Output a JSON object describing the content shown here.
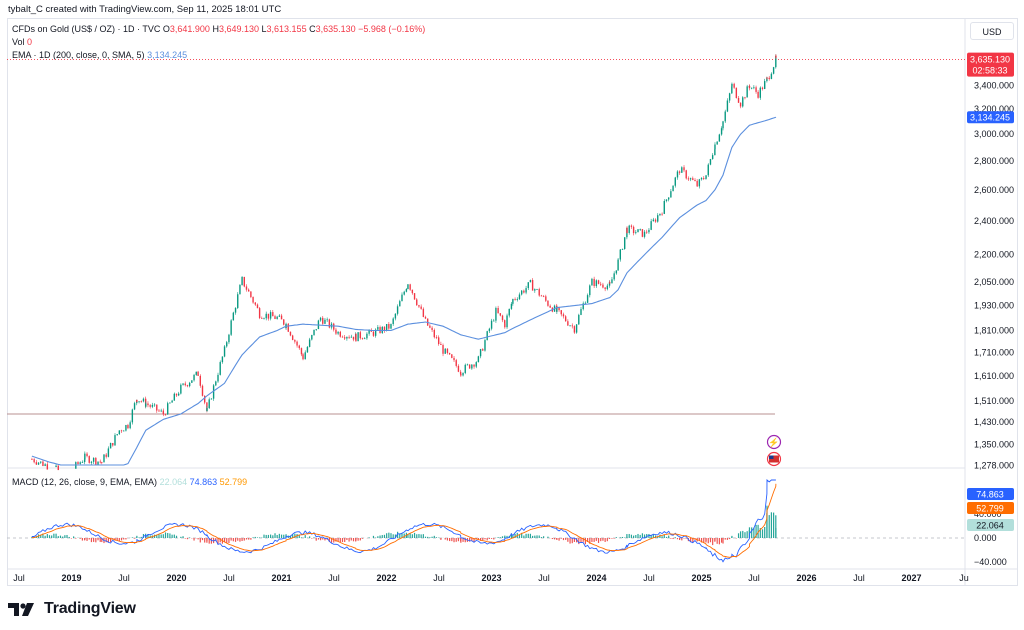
{
  "header": {
    "creator_line": "tybalt_C created with TradingView.com, Sep 11, 2025 18:01 UTC",
    "symbol": "CFDs on Gold (US$ / OZ) · 1D · TVC",
    "o_label": "O",
    "o_value": "3,641.900",
    "h_label": "H",
    "h_value": "3,649.130",
    "l_label": "L",
    "l_value": "3,613.155",
    "c_label": "C",
    "c_value": "3,635.130",
    "change": "−5.968 (−0.16%)",
    "vol_label": "Vol",
    "vol_value": "0",
    "ema_label": "EMA · 1D (200, close, 0, SMA, 5)",
    "ema_value": "3,134.245"
  },
  "currency_button": "USD",
  "price_axis": {
    "ticks": [
      "3,400.000",
      "3,200.000",
      "3,000.000",
      "2,800.000",
      "2,600.000",
      "2,400.000",
      "2,200.000",
      "2,050.000",
      "1,930.000",
      "1,810.000",
      "1,710.000",
      "1,610.000",
      "1,510.000",
      "1,430.000",
      "1,350.000",
      "1,278.000"
    ],
    "last_price": "3,635.130",
    "countdown": "02:58:33",
    "ema_badge": "3,134.245"
  },
  "macd": {
    "label": "MACD (12, 26, close, 9, EMA, EMA)",
    "hist_value": "22.064",
    "macd_value": "74.863",
    "signal_value": "52.799",
    "axis_ticks": [
      "40.000",
      "0.000",
      "−40.000"
    ]
  },
  "time_axis": [
    "Jul",
    "2019",
    "Jul",
    "2020",
    "Jul",
    "2021",
    "Jul",
    "2022",
    "Jul",
    "2023",
    "Jul",
    "2024",
    "Jul",
    "2025",
    "Jul",
    "2026",
    "Jul",
    "2027",
    "Ju"
  ],
  "chart_data": {
    "type": "line",
    "title": "CFDs on Gold (US$ / OZ) · 1D · TVC",
    "price_scale": "log",
    "x": [
      "2018-08",
      "2018-10",
      "2018-12",
      "2019-02",
      "2019-04",
      "2019-06",
      "2019-07",
      "2019-08",
      "2019-09",
      "2019-11",
      "2020-01",
      "2020-03",
      "2020-04",
      "2020-06",
      "2020-08",
      "2020-10",
      "2020-12",
      "2021-01",
      "2021-03",
      "2021-05",
      "2021-07",
      "2021-09",
      "2021-11",
      "2022-01",
      "2022-03",
      "2022-05",
      "2022-07",
      "2022-09",
      "2022-11",
      "2023-01",
      "2023-02",
      "2023-03",
      "2023-05",
      "2023-07",
      "2023-08",
      "2023-10",
      "2023-12",
      "2024-02",
      "2024-03",
      "2024-04",
      "2024-06",
      "2024-08",
      "2024-10",
      "2024-12",
      "2025-01",
      "2025-02",
      "2025-03",
      "2025-04",
      "2025-05",
      "2025-06",
      "2025-07",
      "2025-08",
      "2025-09"
    ],
    "series": [
      {
        "name": "CFDs on Gold (US$ / OZ)",
        "values": [
          1300,
          1275,
          1250,
          1305,
          1290,
          1400,
          1420,
          1520,
          1500,
          1460,
          1560,
          1620,
          1470,
          1720,
          2060,
          1890,
          1870,
          1840,
          1690,
          1870,
          1800,
          1780,
          1800,
          1830,
          2050,
          1850,
          1720,
          1630,
          1680,
          1900,
          1840,
          1960,
          2040,
          1940,
          1900,
          1820,
          2050,
          2030,
          2160,
          2350,
          2320,
          2470,
          2740,
          2630,
          2700,
          2920,
          3100,
          3400,
          3250,
          3400,
          3330,
          3450,
          3635
        ]
      },
      {
        "name": "EMA · 1D (200, close, 0, SMA, 5)",
        "values": [
          1310,
          1290,
          1275,
          1265,
          1268,
          1275,
          1285,
          1340,
          1400,
          1440,
          1460,
          1500,
          1530,
          1580,
          1700,
          1780,
          1810,
          1830,
          1840,
          1835,
          1830,
          1815,
          1810,
          1810,
          1840,
          1850,
          1830,
          1790,
          1770,
          1790,
          1800,
          1820,
          1860,
          1900,
          1920,
          1930,
          1940,
          1970,
          2010,
          2100,
          2200,
          2300,
          2420,
          2500,
          2530,
          2600,
          2700,
          2900,
          3000,
          3070,
          3090,
          3110,
          3134
        ]
      }
    ],
    "horizontal_line": 1460,
    "last_price": 3635.13,
    "macd": {
      "label": "MACD (12, 26, close, 9, EMA, EMA)",
      "histogram": 22.064,
      "macd": 74.863,
      "signal": 52.799,
      "ylim": [
        -40,
        80
      ]
    },
    "ylim": [
      1260,
      3700
    ],
    "grid": false,
    "colors": {
      "up": "#089981",
      "down": "#f23645",
      "ema": "#5b8fde",
      "macd": "#2962ff",
      "signal": "#ff6d00",
      "price_badge": "#f23645"
    }
  }
}
